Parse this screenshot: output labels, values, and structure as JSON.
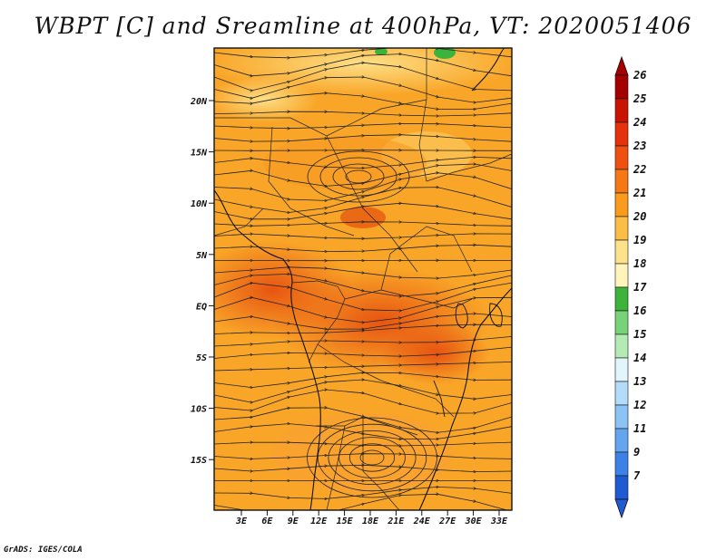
{
  "title": "WBPT [C] and Sreamline at 400hPa, VT: 2020051406",
  "footer": "GrADS: IGES/COLA",
  "axes": {
    "lon_ticks": [
      "3E",
      "6E",
      "9E",
      "12E",
      "15E",
      "18E",
      "21E",
      "24E",
      "27E",
      "30E",
      "33E"
    ],
    "lat_ticks": [
      "20N",
      "15N",
      "10N",
      "5N",
      "EQ",
      "5S",
      "10S",
      "15S"
    ]
  },
  "colorbar": {
    "labels": [
      "26",
      "25",
      "24",
      "23",
      "22",
      "21",
      "20",
      "19",
      "18",
      "17",
      "16",
      "15",
      "14",
      "13",
      "12",
      "11",
      "9",
      "7"
    ],
    "colors": [
      "#a50000",
      "#c81400",
      "#e6320a",
      "#f0500f",
      "#f57814",
      "#fa9b1e",
      "#fcbd46",
      "#fde28c",
      "#fff5bb",
      "#3cb43c",
      "#78d278",
      "#b4ebb4",
      "#e1f5fa",
      "#b4dcfa",
      "#8cc3f5",
      "#64a5f0",
      "#3c82e6",
      "#1e5ad2"
    ]
  }
}
